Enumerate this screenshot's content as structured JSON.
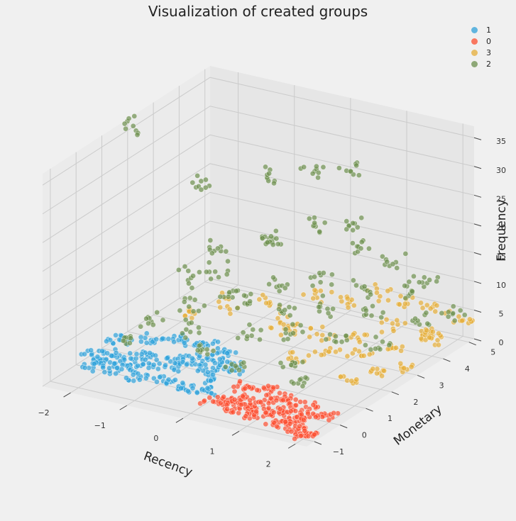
{
  "chart_data": {
    "type": "scatter",
    "projection": "3d",
    "title": "Visualization of created groups",
    "xlabel": "Recency",
    "ylabel": "Monetary",
    "zlabel": "Frequency",
    "xlim": [
      -2.5,
      2.2
    ],
    "ylim": [
      -1.3,
      5.2
    ],
    "zlim": [
      0,
      37
    ],
    "x_ticks": [
      "−2",
      "−1",
      "0",
      "1",
      "2"
    ],
    "y_ticks": [
      "−1",
      "0",
      "1",
      "2",
      "3",
      "4",
      "5"
    ],
    "z_ticks": [
      "0",
      "5",
      "10",
      "15",
      "20",
      "25",
      "30",
      "35"
    ],
    "grid": true,
    "legend_position": "top-right",
    "series": [
      {
        "name": "1",
        "color": "#30a2da",
        "points": [
          [
            -2.4,
            0.4,
            1
          ],
          [
            -2.2,
            0.2,
            1
          ],
          [
            -2.0,
            0.6,
            1
          ],
          [
            -1.8,
            0.3,
            1
          ],
          [
            -1.6,
            0.8,
            1
          ],
          [
            -1.4,
            0.5,
            1
          ],
          [
            -1.2,
            1.0,
            1
          ],
          [
            -1.0,
            0.7,
            1
          ],
          [
            -0.8,
            1.2,
            1
          ],
          [
            -0.6,
            0.9,
            1
          ],
          [
            -0.4,
            1.4,
            1
          ],
          [
            -0.2,
            1.1,
            1
          ],
          [
            -2.3,
            1.3,
            1
          ],
          [
            -1.9,
            1.6,
            1
          ],
          [
            -1.5,
            1.9,
            1
          ],
          [
            -1.1,
            2.0,
            1
          ],
          [
            -0.7,
            1.8,
            1
          ],
          [
            -0.3,
            0.5,
            1
          ],
          [
            -2.1,
            -0.2,
            1
          ],
          [
            -1.7,
            -0.1,
            1
          ],
          [
            -1.3,
            -0.2,
            1
          ],
          [
            -0.9,
            -0.1,
            1
          ],
          [
            -0.5,
            -0.2,
            1
          ],
          [
            -0.1,
            -0.1,
            1
          ]
        ]
      },
      {
        "name": "0",
        "color": "#fc4f30",
        "points": [
          [
            0.2,
            -0.5,
            1
          ],
          [
            0.4,
            -0.3,
            1
          ],
          [
            0.6,
            -0.6,
            1
          ],
          [
            0.8,
            -0.4,
            1
          ],
          [
            1.0,
            -0.7,
            1
          ],
          [
            1.2,
            -0.5,
            1
          ],
          [
            1.4,
            -0.8,
            1
          ],
          [
            1.6,
            -0.6,
            1
          ],
          [
            1.8,
            -0.9,
            1
          ],
          [
            2.0,
            -1.0,
            1
          ],
          [
            2.1,
            -1.1,
            1
          ],
          [
            0.3,
            0.4,
            1
          ],
          [
            0.7,
            0.6,
            1
          ],
          [
            1.1,
            0.3,
            1
          ],
          [
            1.5,
            0.2,
            1
          ],
          [
            1.9,
            0.0,
            1
          ],
          [
            0.5,
            -0.1,
            1
          ],
          [
            0.9,
            0.1,
            1
          ],
          [
            1.3,
            -0.2,
            1
          ],
          [
            1.7,
            -0.3,
            1
          ]
        ]
      },
      {
        "name": "3",
        "color": "#e5ae38",
        "points": [
          [
            0.5,
            2.0,
            2
          ],
          [
            0.9,
            2.4,
            3
          ],
          [
            1.3,
            2.8,
            2
          ],
          [
            1.7,
            3.2,
            3
          ],
          [
            2.0,
            3.6,
            4
          ],
          [
            2.1,
            4.0,
            3
          ],
          [
            1.8,
            4.4,
            2
          ],
          [
            1.4,
            3.8,
            4
          ],
          [
            1.0,
            3.3,
            3
          ],
          [
            0.6,
            2.8,
            4
          ],
          [
            0.2,
            2.4,
            5
          ],
          [
            -0.2,
            2.9,
            4
          ],
          [
            -0.6,
            3.4,
            5
          ],
          [
            0.0,
            3.9,
            6
          ],
          [
            0.4,
            4.3,
            5
          ],
          [
            0.8,
            4.6,
            6
          ],
          [
            1.2,
            4.8,
            5
          ],
          [
            1.6,
            5.0,
            4
          ],
          [
            2.0,
            5.1,
            3
          ],
          [
            1.9,
            2.2,
            2
          ],
          [
            2.1,
            2.6,
            2
          ],
          [
            1.5,
            1.8,
            1
          ],
          [
            -1.0,
            2.6,
            6
          ],
          [
            -1.4,
            2.2,
            5
          ]
        ]
      },
      {
        "name": "2",
        "color": "#6d904f",
        "points": [
          [
            -2.0,
            0.8,
            3
          ],
          [
            -1.8,
            1.4,
            5
          ],
          [
            -1.5,
            2.2,
            6
          ],
          [
            -1.2,
            1.6,
            4
          ],
          [
            -1.0,
            2.8,
            7
          ],
          [
            -0.8,
            1.2,
            3
          ],
          [
            -0.6,
            2.4,
            8
          ],
          [
            -0.4,
            3.2,
            9
          ],
          [
            -0.2,
            1.8,
            5
          ],
          [
            0.0,
            2.6,
            7
          ],
          [
            0.2,
            3.6,
            10
          ],
          [
            0.4,
            2.0,
            6
          ],
          [
            0.6,
            3.0,
            8
          ],
          [
            0.8,
            4.0,
            9
          ],
          [
            1.0,
            2.4,
            5
          ],
          [
            1.2,
            3.4,
            7
          ],
          [
            1.4,
            4.4,
            8
          ],
          [
            1.6,
            2.8,
            4
          ],
          [
            1.8,
            3.8,
            6
          ],
          [
            2.0,
            4.8,
            5
          ],
          [
            -1.6,
            3.4,
            12
          ],
          [
            -0.9,
            4.0,
            14
          ],
          [
            -0.3,
            4.5,
            16
          ],
          [
            0.3,
            4.8,
            13
          ],
          [
            0.9,
            5.0,
            11
          ],
          [
            -1.2,
            4.6,
            22
          ],
          [
            -0.5,
            4.9,
            24
          ],
          [
            0.1,
            5.0,
            25
          ],
          [
            -2.2,
            4.0,
            20
          ],
          [
            -1.4,
            3.0,
            10
          ],
          [
            -0.1,
            1.0,
            2
          ],
          [
            0.7,
            1.4,
            3
          ],
          [
            1.1,
            1.0,
            2
          ],
          [
            -1.7,
            2.6,
            9
          ],
          [
            0.5,
            4.2,
            18
          ],
          [
            -0.7,
            3.6,
            15
          ],
          [
            1.5,
            4.9,
            9
          ],
          [
            -2.4,
            2.0,
            36
          ]
        ]
      }
    ]
  }
}
